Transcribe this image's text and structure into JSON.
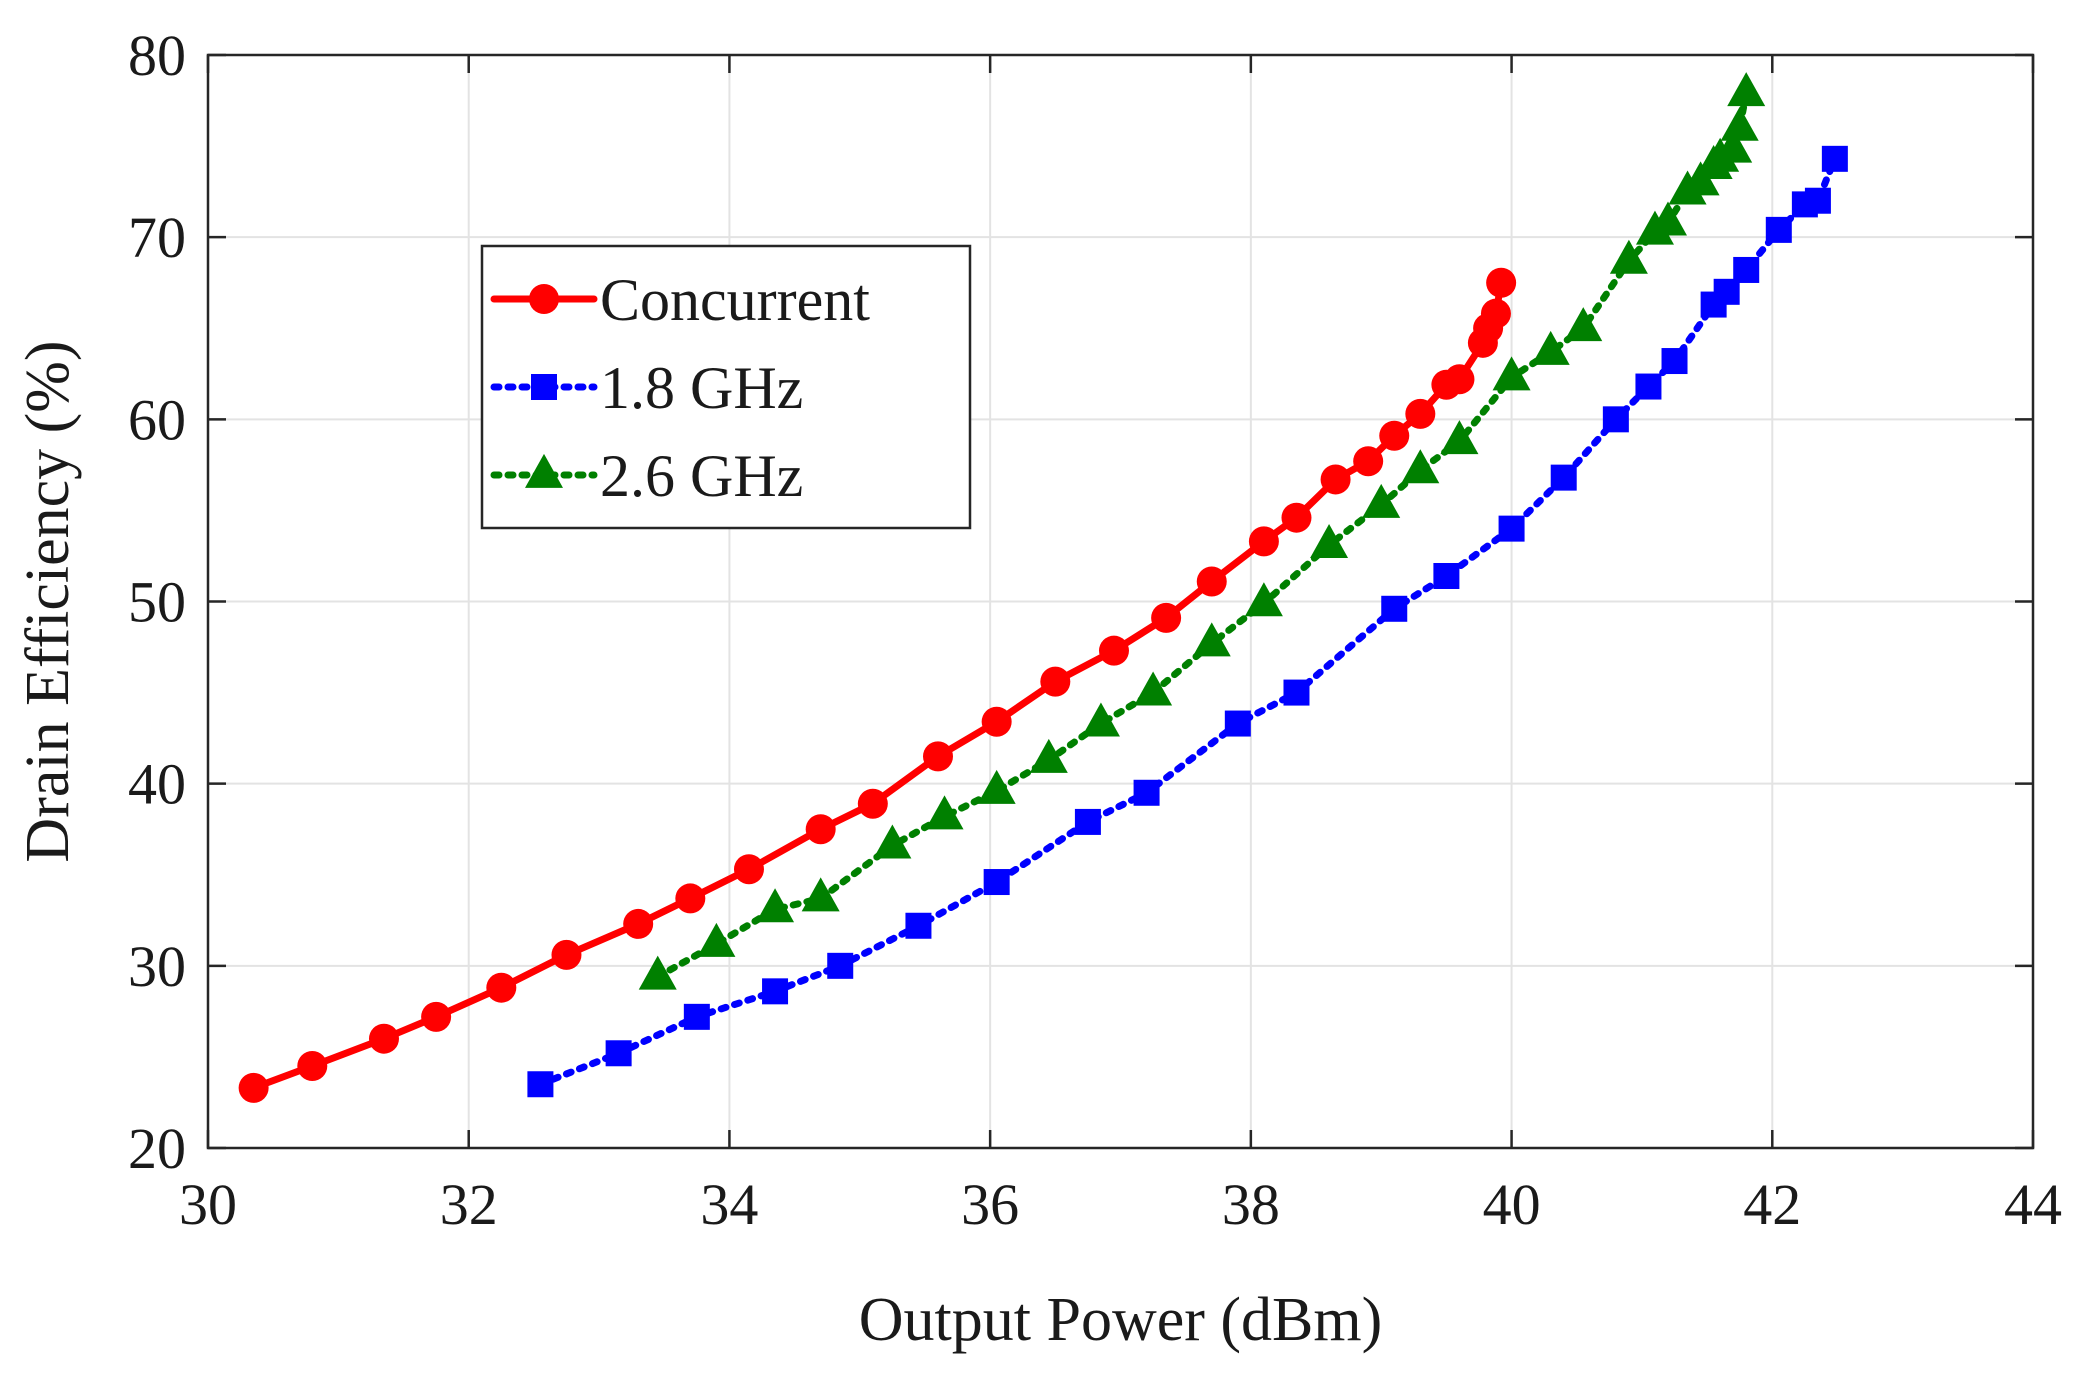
{
  "chart_data": {
    "type": "line",
    "title": "",
    "xlabel": "Output Power (dBm)",
    "ylabel": "Drain Efficiency (%)",
    "xlim": [
      30,
      44
    ],
    "ylim": [
      20,
      80
    ],
    "xticks": [
      30,
      32,
      34,
      36,
      38,
      40,
      42,
      44
    ],
    "yticks": [
      20,
      30,
      40,
      50,
      60,
      70,
      80
    ],
    "grid": true,
    "legend_position": "upper-left",
    "series": [
      {
        "name": "Concurrent",
        "color": "#ff0000",
        "line_style": "solid",
        "marker": "circle",
        "x": [
          30.35,
          30.8,
          31.35,
          31.75,
          32.25,
          32.75,
          33.3,
          33.7,
          34.15,
          34.7,
          35.1,
          35.6,
          36.05,
          36.5,
          36.95,
          37.35,
          37.7,
          38.1,
          38.35,
          38.65,
          38.9,
          39.1,
          39.3,
          39.5,
          39.6,
          39.78,
          39.82,
          39.88,
          39.92
        ],
        "y": [
          23.3,
          24.5,
          26.0,
          27.2,
          28.8,
          30.6,
          32.3,
          33.7,
          35.3,
          37.5,
          38.9,
          41.5,
          43.4,
          45.6,
          47.3,
          49.1,
          51.1,
          53.3,
          54.6,
          56.7,
          57.7,
          59.1,
          60.3,
          61.9,
          62.2,
          64.2,
          65.0,
          65.8,
          67.5
        ]
      },
      {
        "name": "1.8 GHz",
        "color": "#0000ff",
        "line_style": "dotted",
        "marker": "square",
        "x": [
          32.55,
          33.15,
          33.75,
          34.35,
          34.85,
          35.45,
          36.05,
          36.75,
          37.2,
          37.9,
          38.35,
          39.1,
          39.5,
          40.0,
          40.4,
          40.8,
          41.05,
          41.25,
          41.55,
          41.65,
          41.8,
          42.05,
          42.25,
          42.35,
          42.48
        ],
        "y": [
          23.5,
          25.2,
          27.2,
          28.6,
          30.0,
          32.2,
          34.6,
          37.9,
          39.5,
          43.3,
          45.0,
          49.6,
          51.4,
          54.0,
          56.8,
          60.0,
          61.8,
          63.2,
          66.3,
          67.0,
          68.2,
          70.4,
          71.8,
          72.0,
          74.3
        ]
      },
      {
        "name": "2.6 GHz",
        "color": "#008000",
        "line_style": "dotted",
        "marker": "triangle",
        "x": [
          33.45,
          33.9,
          34.35,
          34.7,
          35.25,
          35.65,
          36.05,
          36.45,
          36.85,
          37.25,
          37.7,
          38.1,
          38.6,
          39.0,
          39.3,
          39.6,
          40.0,
          40.3,
          40.55,
          40.9,
          41.1,
          41.2,
          41.35,
          41.45,
          41.55,
          41.6,
          41.7,
          41.75,
          41.8
        ],
        "y": [
          29.4,
          31.2,
          33.1,
          33.7,
          36.6,
          38.2,
          39.6,
          41.3,
          43.3,
          45.0,
          47.7,
          49.9,
          53.1,
          55.3,
          57.2,
          58.8,
          62.3,
          63.7,
          65.0,
          68.7,
          70.3,
          70.8,
          72.5,
          73.0,
          73.9,
          74.3,
          74.8,
          76.0,
          77.9
        ]
      }
    ]
  }
}
